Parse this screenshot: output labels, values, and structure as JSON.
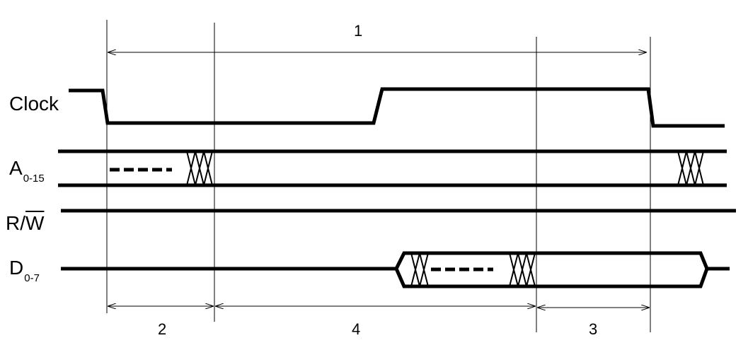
{
  "signals": {
    "clock": "Clock",
    "address": {
      "base": "A",
      "subscript": "0-15"
    },
    "rw": {
      "prefix": "R/",
      "overlined": "W"
    },
    "data": {
      "base": "D",
      "subscript": "0-7"
    }
  },
  "intervals": {
    "total": "1",
    "setup": "2",
    "hold": "3",
    "access": "4"
  }
}
